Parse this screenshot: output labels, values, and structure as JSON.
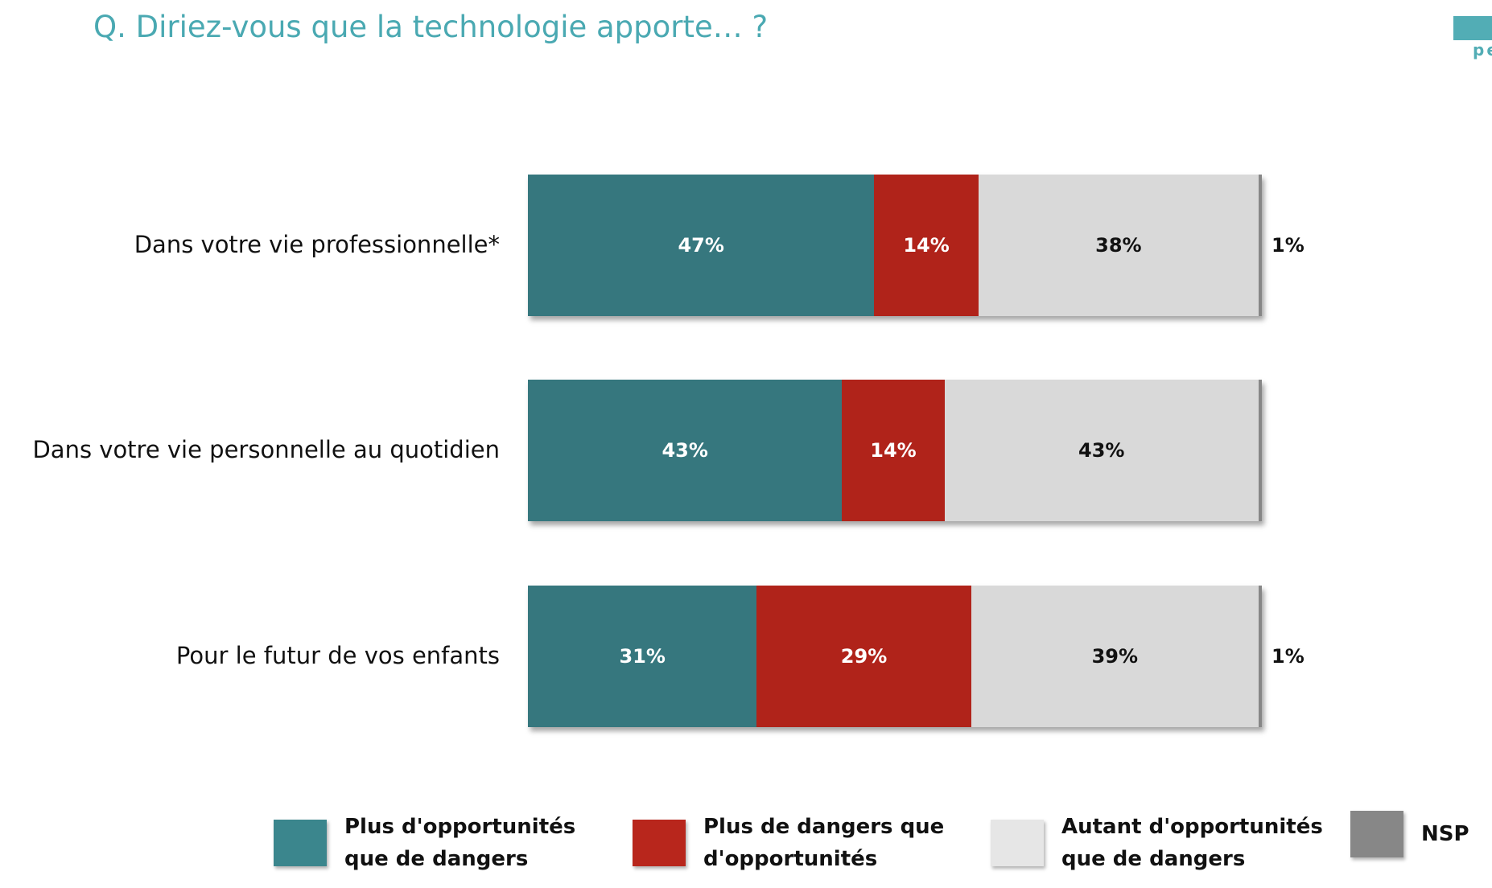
{
  "title": "Q. Diriez-vous que la technologie apporte… ?",
  "logo_text": "pe",
  "chart_data": {
    "type": "bar",
    "orientation": "horizontal-stacked-100",
    "categories": [
      "Dans votre vie professionnelle*",
      "Dans votre vie personnelle au quotidien",
      "Pour le futur de vos enfants"
    ],
    "series": [
      {
        "name": "Plus d'opportunités que de dangers",
        "color": "#36777e",
        "text_color": "#ffffff",
        "values": [
          47,
          43,
          31
        ],
        "labels": [
          "47%",
          "43%",
          "31%"
        ]
      },
      {
        "name": "Plus de dangers que d'opportunités",
        "color": "#b0231a",
        "text_color": "#ffffff",
        "values": [
          14,
          14,
          29
        ],
        "labels": [
          "14%",
          "14%",
          "29%"
        ]
      },
      {
        "name": "Autant d'opportunités que de dangers",
        "color": "#d9d9d9",
        "text_color": "#111111",
        "values": [
          38,
          43,
          39
        ],
        "labels": [
          "38%",
          "43%",
          "39%"
        ]
      },
      {
        "name": "NSP",
        "color": "#878787",
        "text_color": "#111111",
        "values": [
          1,
          0,
          1
        ],
        "labels": [
          "1%",
          "",
          "1%"
        ]
      }
    ],
    "xlim": [
      0,
      100
    ],
    "legend_position": "bottom"
  },
  "legend": [
    {
      "label": "Plus d'opportunités\nque de dangers",
      "color": "#3b868d"
    },
    {
      "label": "Plus de dangers que\nd'opportunités",
      "color": "#b8261c"
    },
    {
      "label": "Autant d'opportunités\nque de dangers",
      "color": "#e6e6e6"
    },
    {
      "label": "NSP",
      "color": "#878787"
    }
  ]
}
